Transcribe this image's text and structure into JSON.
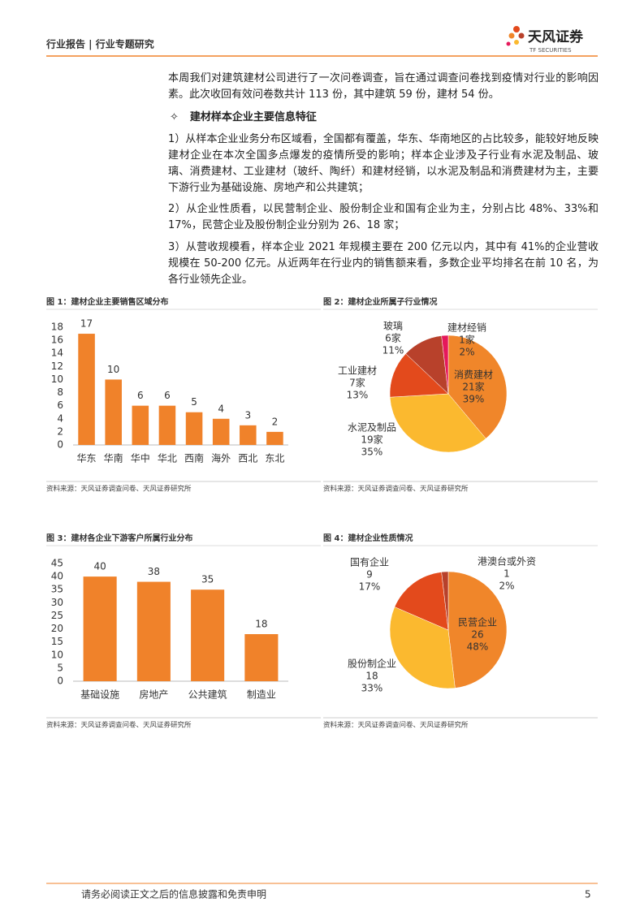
{
  "header": {
    "title": "行业报告 | 行业专题研究",
    "logo_name": "天风证券",
    "logo_sub": "TF SECURITIES"
  },
  "body": {
    "intro": "本周我们对建筑建材公司进行了一次问卷调查，旨在通过调查问卷找到疫情对行业的影响因素。此次收回有效问卷数共计 113 份，其中建筑 59 份，建材 54 份。",
    "bullet": "✧",
    "heading": "建材样本企业主要信息特征",
    "items": [
      "1）从样本企业业务分布区域看，全国都有覆盖，华东、华南地区的占比较多，能较好地反映建材企业在本次全国多点爆发的疫情所受的影响；样本企业涉及子行业有水泥及制品、玻璃、消费建材、工业建材（玻纤、陶纤）和建材经销，以水泥及制品和消费建材为主，主要下游行业为基础设施、房地产和公共建筑；",
      "2）从企业性质看，以民营制企业、股份制企业和国有企业为主，分别占比 48%、33%和 17%，民营企业及股份制企业分别为 26、18 家；",
      "3）从营收规模看，样本企业 2021 年规模主要在 200 亿元以内，其中有 41%的企业营收规模在 50-200 亿元。从近两年在行业内的销售额来看，多数企业平均排名在前 10 名，为各行业领先企业。"
    ]
  },
  "chart_data": [
    {
      "type": "bar",
      "title": "图 1：建材企业主要销售区域分布",
      "source": "资料来源：天风证券调查问卷、天风证券研究所",
      "categories": [
        "华东",
        "华南",
        "华中",
        "华北",
        "西南",
        "海外",
        "西北",
        "东北"
      ],
      "values": [
        17,
        10,
        6,
        6,
        5,
        4,
        3,
        2
      ],
      "color": "#f0822a",
      "ylim": [
        0,
        18
      ],
      "yticks": [
        0,
        2,
        4,
        6,
        8,
        10,
        12,
        14,
        16,
        18
      ]
    },
    {
      "type": "pie",
      "title": "图 2：建材企业所属子行业情况",
      "source": "资料来源：天风证券调查问卷、天风证券研究所",
      "categories": [
        "消费建材",
        "水泥及制品",
        "工业建材",
        "玻璃",
        "建材经销"
      ],
      "values": [
        21,
        19,
        7,
        6,
        1
      ],
      "value_labels": [
        "21家",
        "19家",
        "7家",
        "6家",
        "1家"
      ],
      "shares": [
        39,
        35,
        13,
        11,
        2
      ],
      "share_labels": [
        "39%",
        "35%",
        "13%",
        "11%",
        "2%"
      ],
      "colors": [
        "#f0862a",
        "#fbb92f",
        "#e34a1c",
        "#b8412b",
        "#e5195b"
      ]
    },
    {
      "type": "bar",
      "title": "图 3：建材各企业下游客户所属行业分布",
      "source": "资料来源：天风证券调查问卷、天风证券研究所",
      "categories": [
        "基础设施",
        "房地产",
        "公共建筑",
        "制造业"
      ],
      "values": [
        40,
        38,
        35,
        18
      ],
      "color": "#f0822a",
      "ylim": [
        0,
        45
      ],
      "yticks": [
        0,
        5,
        10,
        15,
        20,
        25,
        30,
        35,
        40,
        45
      ]
    },
    {
      "type": "pie",
      "title": "图 4：建材企业性质情况",
      "source": "资料来源：天风证券调查问卷、天风证券研究所",
      "categories": [
        "民营企业",
        "股份制企业",
        "国有企业",
        "港澳台或外资"
      ],
      "values": [
        26,
        18,
        9,
        1
      ],
      "shares": [
        48,
        33,
        17,
        2
      ],
      "share_labels": [
        "48%",
        "33%",
        "17%",
        "2%"
      ],
      "colors": [
        "#f0862a",
        "#fbb92f",
        "#e34a1c",
        "#b8412b"
      ]
    }
  ],
  "footer": {
    "disclaimer": "请务必阅读正文之后的信息披露和免责申明",
    "page": 5
  }
}
